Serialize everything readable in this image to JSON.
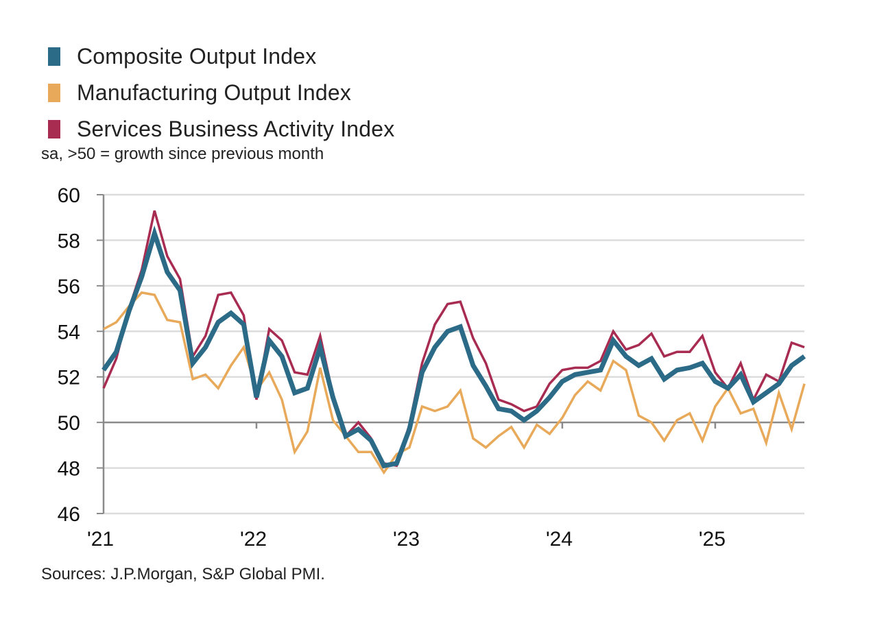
{
  "chart_data": {
    "type": "line",
    "title": "",
    "subtitle": "sa, >50 = growth since previous month",
    "source": "Sources: J.P.Morgan, S&P Global PMI.",
    "xlabel": "",
    "ylabel": "",
    "ylim": [
      46,
      60
    ],
    "yticks": [
      46,
      48,
      50,
      52,
      54,
      56,
      58,
      60
    ],
    "ytick_labels": [
      "46",
      "48",
      "50",
      "52",
      "54",
      "56",
      "58",
      "60"
    ],
    "baseline": 50,
    "grid": true,
    "legend_position": "top-left",
    "x_start": "2021-01",
    "x_end": "2025-08",
    "x_frequency": "monthly",
    "xtick_labels": [
      "'21",
      "'22",
      "'23",
      "'24",
      "'25"
    ],
    "xtick_month_index": [
      0,
      12,
      24,
      36,
      48
    ],
    "series": [
      {
        "name": "Composite Output Index",
        "color": "#2c6b87",
        "emphasis": "thick",
        "values": [
          52.3,
          53.1,
          54.9,
          56.4,
          58.3,
          56.6,
          55.8,
          52.6,
          53.3,
          54.4,
          54.8,
          54.3,
          51.1,
          53.6,
          52.9,
          51.3,
          51.5,
          53.3,
          51.1,
          49.4,
          49.7,
          49.2,
          48.1,
          48.2,
          49.7,
          52.2,
          53.3,
          54.0,
          54.2,
          52.5,
          51.6,
          50.6,
          50.5,
          50.1,
          50.5,
          51.1,
          51.8,
          52.1,
          52.2,
          52.3,
          53.6,
          52.9,
          52.5,
          52.8,
          51.9,
          52.3,
          52.4,
          52.6,
          51.8,
          51.5,
          52.1,
          50.9,
          51.3,
          51.7,
          52.5,
          52.9
        ]
      },
      {
        "name": "Manufacturing Output Index",
        "color": "#e8aa5a",
        "emphasis": "normal",
        "values": [
          54.1,
          54.4,
          55.1,
          55.7,
          55.6,
          54.5,
          54.4,
          51.9,
          52.1,
          51.5,
          52.5,
          53.3,
          51.4,
          52.2,
          51.0,
          48.7,
          49.6,
          52.4,
          50.1,
          49.4,
          48.7,
          48.7,
          47.8,
          48.6,
          48.9,
          50.7,
          50.5,
          50.7,
          51.4,
          49.3,
          48.9,
          49.4,
          49.8,
          48.9,
          49.9,
          49.5,
          50.2,
          51.2,
          51.8,
          51.4,
          52.7,
          52.3,
          50.3,
          50.0,
          49.2,
          50.1,
          50.4,
          49.2,
          50.7,
          51.5,
          50.4,
          50.6,
          49.1,
          51.3,
          49.7,
          51.7
        ]
      },
      {
        "name": "Services Business Activity Index",
        "color": "#a82c52",
        "emphasis": "normal",
        "values": [
          51.5,
          52.8,
          55.0,
          56.7,
          59.3,
          57.3,
          56.3,
          52.9,
          53.8,
          55.6,
          55.7,
          54.7,
          51.0,
          54.1,
          53.6,
          52.2,
          52.1,
          53.8,
          51.2,
          49.4,
          50.0,
          49.3,
          48.2,
          48.1,
          49.9,
          52.6,
          54.3,
          55.2,
          55.3,
          53.7,
          52.6,
          51.0,
          50.8,
          50.5,
          50.7,
          51.7,
          52.3,
          52.4,
          52.4,
          52.7,
          54.0,
          53.2,
          53.4,
          53.9,
          52.9,
          53.1,
          53.1,
          53.8,
          52.2,
          51.5,
          52.6,
          51.0,
          52.1,
          51.8,
          53.5,
          53.3
        ]
      }
    ]
  }
}
